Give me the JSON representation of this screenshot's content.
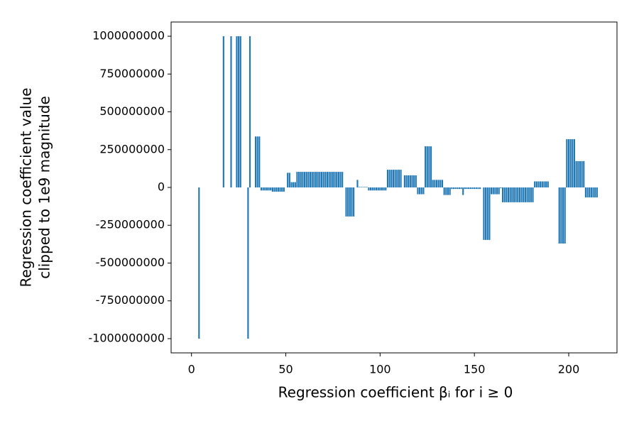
{
  "chart_data": {
    "type": "bar",
    "xlabel": "Regression coefficient βᵢ for i ≥ 0",
    "ylabel": [
      "Regression coefficient value",
      "clipped to 1e9 magnitude"
    ],
    "color": "#1f77b4",
    "xlim": [
      -10.8,
      225.6
    ],
    "xticks": [
      0,
      50,
      100,
      150,
      200
    ],
    "ylim": [
      -1094000000,
      1094000000
    ],
    "yticks": [
      -1000000000,
      -750000000,
      -500000000,
      -250000000,
      0,
      250000000,
      500000000,
      750000000,
      1000000000
    ],
    "x": [
      0,
      1,
      2,
      3,
      4,
      5,
      6,
      7,
      8,
      9,
      10,
      11,
      12,
      13,
      14,
      15,
      16,
      17,
      18,
      19,
      20,
      21,
      22,
      23,
      24,
      25,
      26,
      27,
      28,
      29,
      30,
      31,
      32,
      33,
      34,
      35,
      36,
      37,
      38,
      39,
      40,
      41,
      42,
      43,
      44,
      45,
      46,
      47,
      48,
      49,
      50,
      51,
      52,
      53,
      54,
      55,
      56,
      57,
      58,
      59,
      60,
      61,
      62,
      63,
      64,
      65,
      66,
      67,
      68,
      69,
      70,
      71,
      72,
      73,
      74,
      75,
      76,
      77,
      78,
      79,
      80,
      81,
      82,
      83,
      84,
      85,
      86,
      87,
      88,
      89,
      90,
      91,
      92,
      93,
      94,
      95,
      96,
      97,
      98,
      99,
      100,
      101,
      102,
      103,
      104,
      105,
      106,
      107,
      108,
      109,
      110,
      111,
      112,
      113,
      114,
      115,
      116,
      117,
      118,
      119,
      120,
      121,
      122,
      123,
      124,
      125,
      126,
      127,
      128,
      129,
      130,
      131,
      132,
      133,
      134,
      135,
      136,
      137,
      138,
      139,
      140,
      141,
      142,
      143,
      144,
      145,
      146,
      147,
      148,
      149,
      150,
      151,
      152,
      153,
      154,
      155,
      156,
      157,
      158,
      159,
      160,
      161,
      162,
      163,
      164,
      165,
      166,
      167,
      168,
      169,
      170,
      171,
      172,
      173,
      174,
      175,
      176,
      177,
      178,
      179,
      180,
      181,
      182,
      183,
      184,
      185,
      186,
      187,
      188,
      189,
      190,
      191,
      192,
      193,
      194,
      195,
      196,
      197,
      198,
      199,
      200,
      201,
      202,
      203,
      204,
      205,
      206,
      207,
      208,
      209,
      210,
      211,
      212,
      213,
      214,
      215
    ],
    "values": [
      0,
      0,
      0,
      0,
      -1000000000,
      0,
      0,
      0,
      0,
      0,
      0,
      0,
      0,
      0,
      0,
      0,
      0,
      1000000000,
      0,
      0,
      0,
      1000000000,
      0,
      0,
      1000000000,
      1000000000,
      1000000000,
      0,
      0,
      0,
      -1000000000,
      1000000000,
      0,
      0,
      337000000,
      337000000,
      337000000,
      -20000000,
      -20000000,
      -20000000,
      -20000000,
      -20000000,
      -20000000,
      -28000000,
      -28000000,
      -28000000,
      -28000000,
      -28000000,
      -28000000,
      -28000000,
      0,
      97000000,
      97000000,
      35000000,
      35000000,
      35000000,
      103000000,
      103000000,
      103000000,
      103000000,
      103000000,
      103000000,
      103000000,
      103000000,
      103000000,
      103000000,
      103000000,
      103000000,
      103000000,
      103000000,
      103000000,
      103000000,
      103000000,
      103000000,
      103000000,
      103000000,
      103000000,
      103000000,
      103000000,
      103000000,
      103000000,
      0,
      -192000000,
      -192000000,
      -192000000,
      -192000000,
      -192000000,
      0,
      50000000,
      3000000,
      3000000,
      3000000,
      3000000,
      3000000,
      -20000000,
      -20000000,
      -20000000,
      -20000000,
      -20000000,
      -20000000,
      -20000000,
      -20000000,
      -20000000,
      -20000000,
      117000000,
      117000000,
      117000000,
      117000000,
      117000000,
      117000000,
      117000000,
      117000000,
      0,
      80000000,
      80000000,
      80000000,
      80000000,
      80000000,
      80000000,
      80000000,
      -45000000,
      -45000000,
      -45000000,
      -45000000,
      272000000,
      272000000,
      272000000,
      272000000,
      50000000,
      50000000,
      50000000,
      50000000,
      50000000,
      50000000,
      -50000000,
      -50000000,
      -50000000,
      -50000000,
      -10000000,
      -10000000,
      -10000000,
      -10000000,
      -10000000,
      -10000000,
      -50000000,
      -10000000,
      -10000000,
      -10000000,
      -10000000,
      -10000000,
      -10000000,
      -10000000,
      -10000000,
      -10000000,
      0,
      -347000000,
      -347000000,
      -347000000,
      -347000000,
      -45000000,
      -45000000,
      -45000000,
      -45000000,
      -45000000,
      -5000000,
      -98000000,
      -98000000,
      -98000000,
      -98000000,
      -98000000,
      -98000000,
      -98000000,
      -98000000,
      -98000000,
      -98000000,
      -98000000,
      -98000000,
      -98000000,
      -98000000,
      -98000000,
      -98000000,
      -98000000,
      40000000,
      40000000,
      40000000,
      40000000,
      40000000,
      40000000,
      40000000,
      40000000,
      0,
      0,
      0,
      0,
      0,
      -371000000,
      -371000000,
      -371000000,
      -371000000,
      319000000,
      319000000,
      319000000,
      319000000,
      319000000,
      174000000,
      174000000,
      174000000,
      174000000,
      174000000,
      -66000000,
      -66000000,
      -66000000,
      -66000000,
      -66000000,
      -66000000,
      -66000000
    ]
  }
}
